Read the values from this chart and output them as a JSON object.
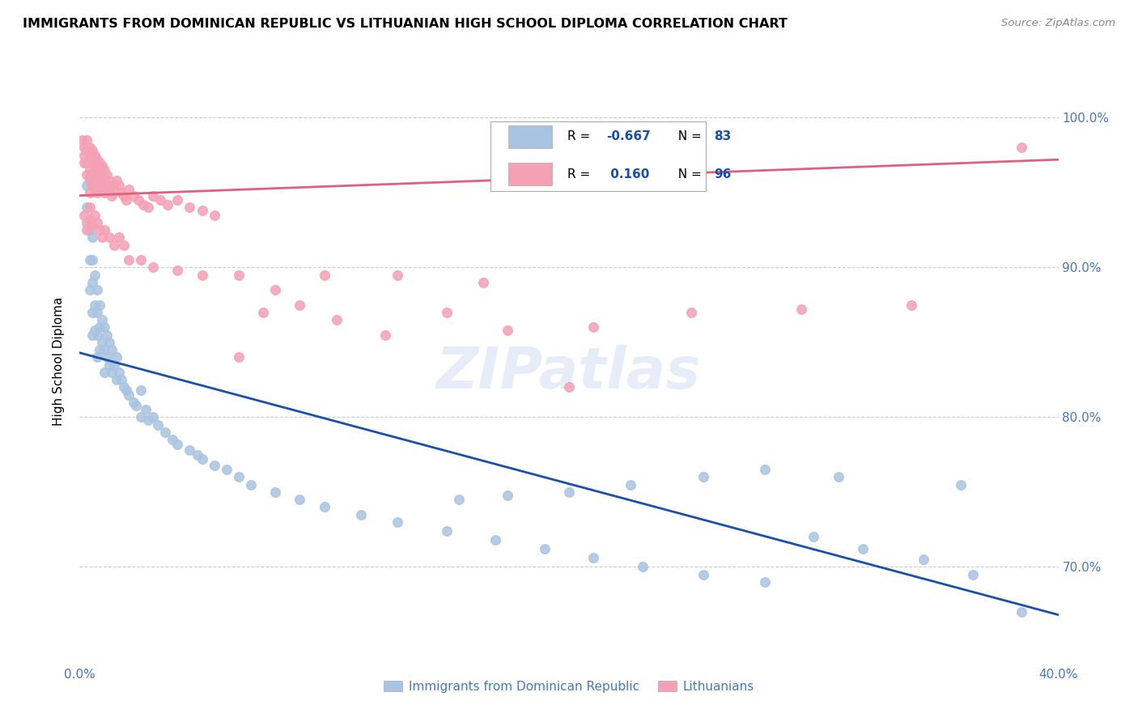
{
  "title": "IMMIGRANTS FROM DOMINICAN REPUBLIC VS LITHUANIAN HIGH SCHOOL DIPLOMA CORRELATION CHART",
  "source": "Source: ZipAtlas.com",
  "ylabel": "High School Diploma",
  "yticks": [
    "100.0%",
    "90.0%",
    "80.0%",
    "70.0%"
  ],
  "ytick_vals": [
    1.0,
    0.9,
    0.8,
    0.7
  ],
  "xmin": 0.0,
  "xmax": 0.4,
  "ymin": 0.635,
  "ymax": 1.04,
  "legend_r_blue": "-0.667",
  "legend_n_blue": "83",
  "legend_r_pink": "0.160",
  "legend_n_pink": "96",
  "blue_color": "#a8c4e0",
  "pink_color": "#f4a0b5",
  "blue_line_color": "#1a4faa",
  "pink_line_color": "#e06080",
  "watermark": "ZIPatlas",
  "blue_line_x0": 0.0,
  "blue_line_x1": 0.4,
  "blue_line_y0": 0.843,
  "blue_line_y1": 0.668,
  "pink_line_x0": 0.0,
  "pink_line_x1": 0.4,
  "pink_line_y0": 0.948,
  "pink_line_y1": 0.972,
  "blue_scatter_x": [
    0.003,
    0.003,
    0.004,
    0.004,
    0.004,
    0.004,
    0.005,
    0.005,
    0.005,
    0.005,
    0.005,
    0.006,
    0.006,
    0.006,
    0.007,
    0.007,
    0.007,
    0.007,
    0.008,
    0.008,
    0.008,
    0.009,
    0.009,
    0.01,
    0.01,
    0.01,
    0.011,
    0.011,
    0.012,
    0.012,
    0.013,
    0.013,
    0.014,
    0.015,
    0.015,
    0.016,
    0.017,
    0.018,
    0.019,
    0.02,
    0.022,
    0.023,
    0.025,
    0.025,
    0.027,
    0.028,
    0.03,
    0.032,
    0.035,
    0.038,
    0.04,
    0.045,
    0.048,
    0.05,
    0.055,
    0.06,
    0.065,
    0.07,
    0.08,
    0.09,
    0.1,
    0.115,
    0.13,
    0.15,
    0.17,
    0.19,
    0.21,
    0.23,
    0.255,
    0.28,
    0.3,
    0.32,
    0.345,
    0.365,
    0.385,
    0.36,
    0.31,
    0.28,
    0.255,
    0.225,
    0.2,
    0.175,
    0.155
  ],
  "blue_scatter_y": [
    0.955,
    0.94,
    0.96,
    0.925,
    0.905,
    0.885,
    0.92,
    0.905,
    0.89,
    0.87,
    0.855,
    0.895,
    0.875,
    0.858,
    0.885,
    0.87,
    0.855,
    0.84,
    0.875,
    0.86,
    0.845,
    0.865,
    0.85,
    0.86,
    0.845,
    0.83,
    0.855,
    0.84,
    0.85,
    0.835,
    0.845,
    0.83,
    0.835,
    0.84,
    0.825,
    0.83,
    0.825,
    0.82,
    0.818,
    0.815,
    0.81,
    0.808,
    0.818,
    0.8,
    0.805,
    0.798,
    0.8,
    0.795,
    0.79,
    0.785,
    0.782,
    0.778,
    0.775,
    0.772,
    0.768,
    0.765,
    0.76,
    0.755,
    0.75,
    0.745,
    0.74,
    0.735,
    0.73,
    0.724,
    0.718,
    0.712,
    0.706,
    0.7,
    0.695,
    0.69,
    0.72,
    0.712,
    0.705,
    0.695,
    0.67,
    0.755,
    0.76,
    0.765,
    0.76,
    0.755,
    0.75,
    0.748,
    0.745
  ],
  "pink_scatter_x": [
    0.001,
    0.002,
    0.002,
    0.002,
    0.003,
    0.003,
    0.003,
    0.003,
    0.004,
    0.004,
    0.004,
    0.004,
    0.004,
    0.005,
    0.005,
    0.005,
    0.005,
    0.006,
    0.006,
    0.006,
    0.006,
    0.007,
    0.007,
    0.007,
    0.007,
    0.008,
    0.008,
    0.008,
    0.009,
    0.009,
    0.009,
    0.01,
    0.01,
    0.01,
    0.011,
    0.011,
    0.012,
    0.012,
    0.013,
    0.013,
    0.014,
    0.015,
    0.016,
    0.017,
    0.018,
    0.019,
    0.02,
    0.022,
    0.024,
    0.026,
    0.028,
    0.03,
    0.033,
    0.036,
    0.04,
    0.045,
    0.05,
    0.055,
    0.065,
    0.075,
    0.09,
    0.105,
    0.125,
    0.15,
    0.175,
    0.21,
    0.25,
    0.295,
    0.34,
    0.385,
    0.002,
    0.003,
    0.003,
    0.004,
    0.004,
    0.005,
    0.006,
    0.007,
    0.008,
    0.009,
    0.01,
    0.012,
    0.014,
    0.016,
    0.018,
    0.02,
    0.025,
    0.03,
    0.04,
    0.05,
    0.065,
    0.08,
    0.1,
    0.13,
    0.165,
    0.2
  ],
  "pink_scatter_y": [
    0.985,
    0.98,
    0.975,
    0.97,
    0.985,
    0.978,
    0.97,
    0.962,
    0.98,
    0.973,
    0.965,
    0.958,
    0.95,
    0.978,
    0.97,
    0.963,
    0.955,
    0.975,
    0.968,
    0.96,
    0.952,
    0.972,
    0.965,
    0.958,
    0.95,
    0.97,
    0.962,
    0.955,
    0.968,
    0.96,
    0.952,
    0.965,
    0.958,
    0.95,
    0.962,
    0.955,
    0.958,
    0.952,
    0.955,
    0.948,
    0.952,
    0.958,
    0.955,
    0.95,
    0.948,
    0.945,
    0.952,
    0.948,
    0.945,
    0.942,
    0.94,
    0.948,
    0.945,
    0.942,
    0.945,
    0.94,
    0.938,
    0.935,
    0.84,
    0.87,
    0.875,
    0.865,
    0.855,
    0.87,
    0.858,
    0.86,
    0.87,
    0.872,
    0.875,
    0.98,
    0.935,
    0.93,
    0.925,
    0.94,
    0.932,
    0.928,
    0.935,
    0.93,
    0.925,
    0.92,
    0.925,
    0.92,
    0.915,
    0.92,
    0.915,
    0.905,
    0.905,
    0.9,
    0.898,
    0.895,
    0.895,
    0.885,
    0.895,
    0.895,
    0.89,
    0.82
  ]
}
